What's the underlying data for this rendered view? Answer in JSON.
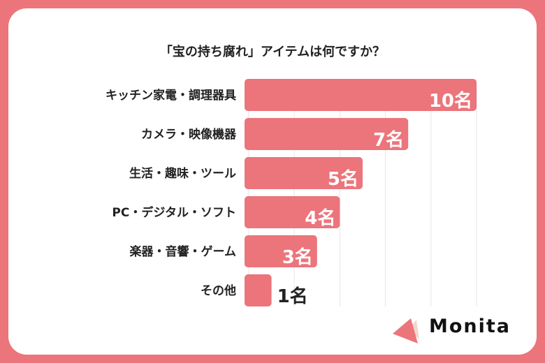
{
  "chart_data": {
    "type": "bar",
    "orientation": "horizontal",
    "title": "「宝の持ち腐れ」アイテムは何ですか？",
    "categories": [
      "キッチン家電・調理器具",
      "カメラ・映像機器",
      "生活・趣味・ツール",
      "PC・デジタル・ソフト",
      "楽器・音響・ゲーム",
      "その他"
    ],
    "values": [
      10,
      7,
      5,
      4,
      3,
      1
    ],
    "data_labels": [
      "10名",
      "7名",
      "5名",
      "4名",
      "3名",
      "1名"
    ],
    "xlim": [
      0,
      10
    ],
    "grid": true,
    "bar_color": "#ec747b"
  },
  "logo": {
    "text": "Monita"
  }
}
